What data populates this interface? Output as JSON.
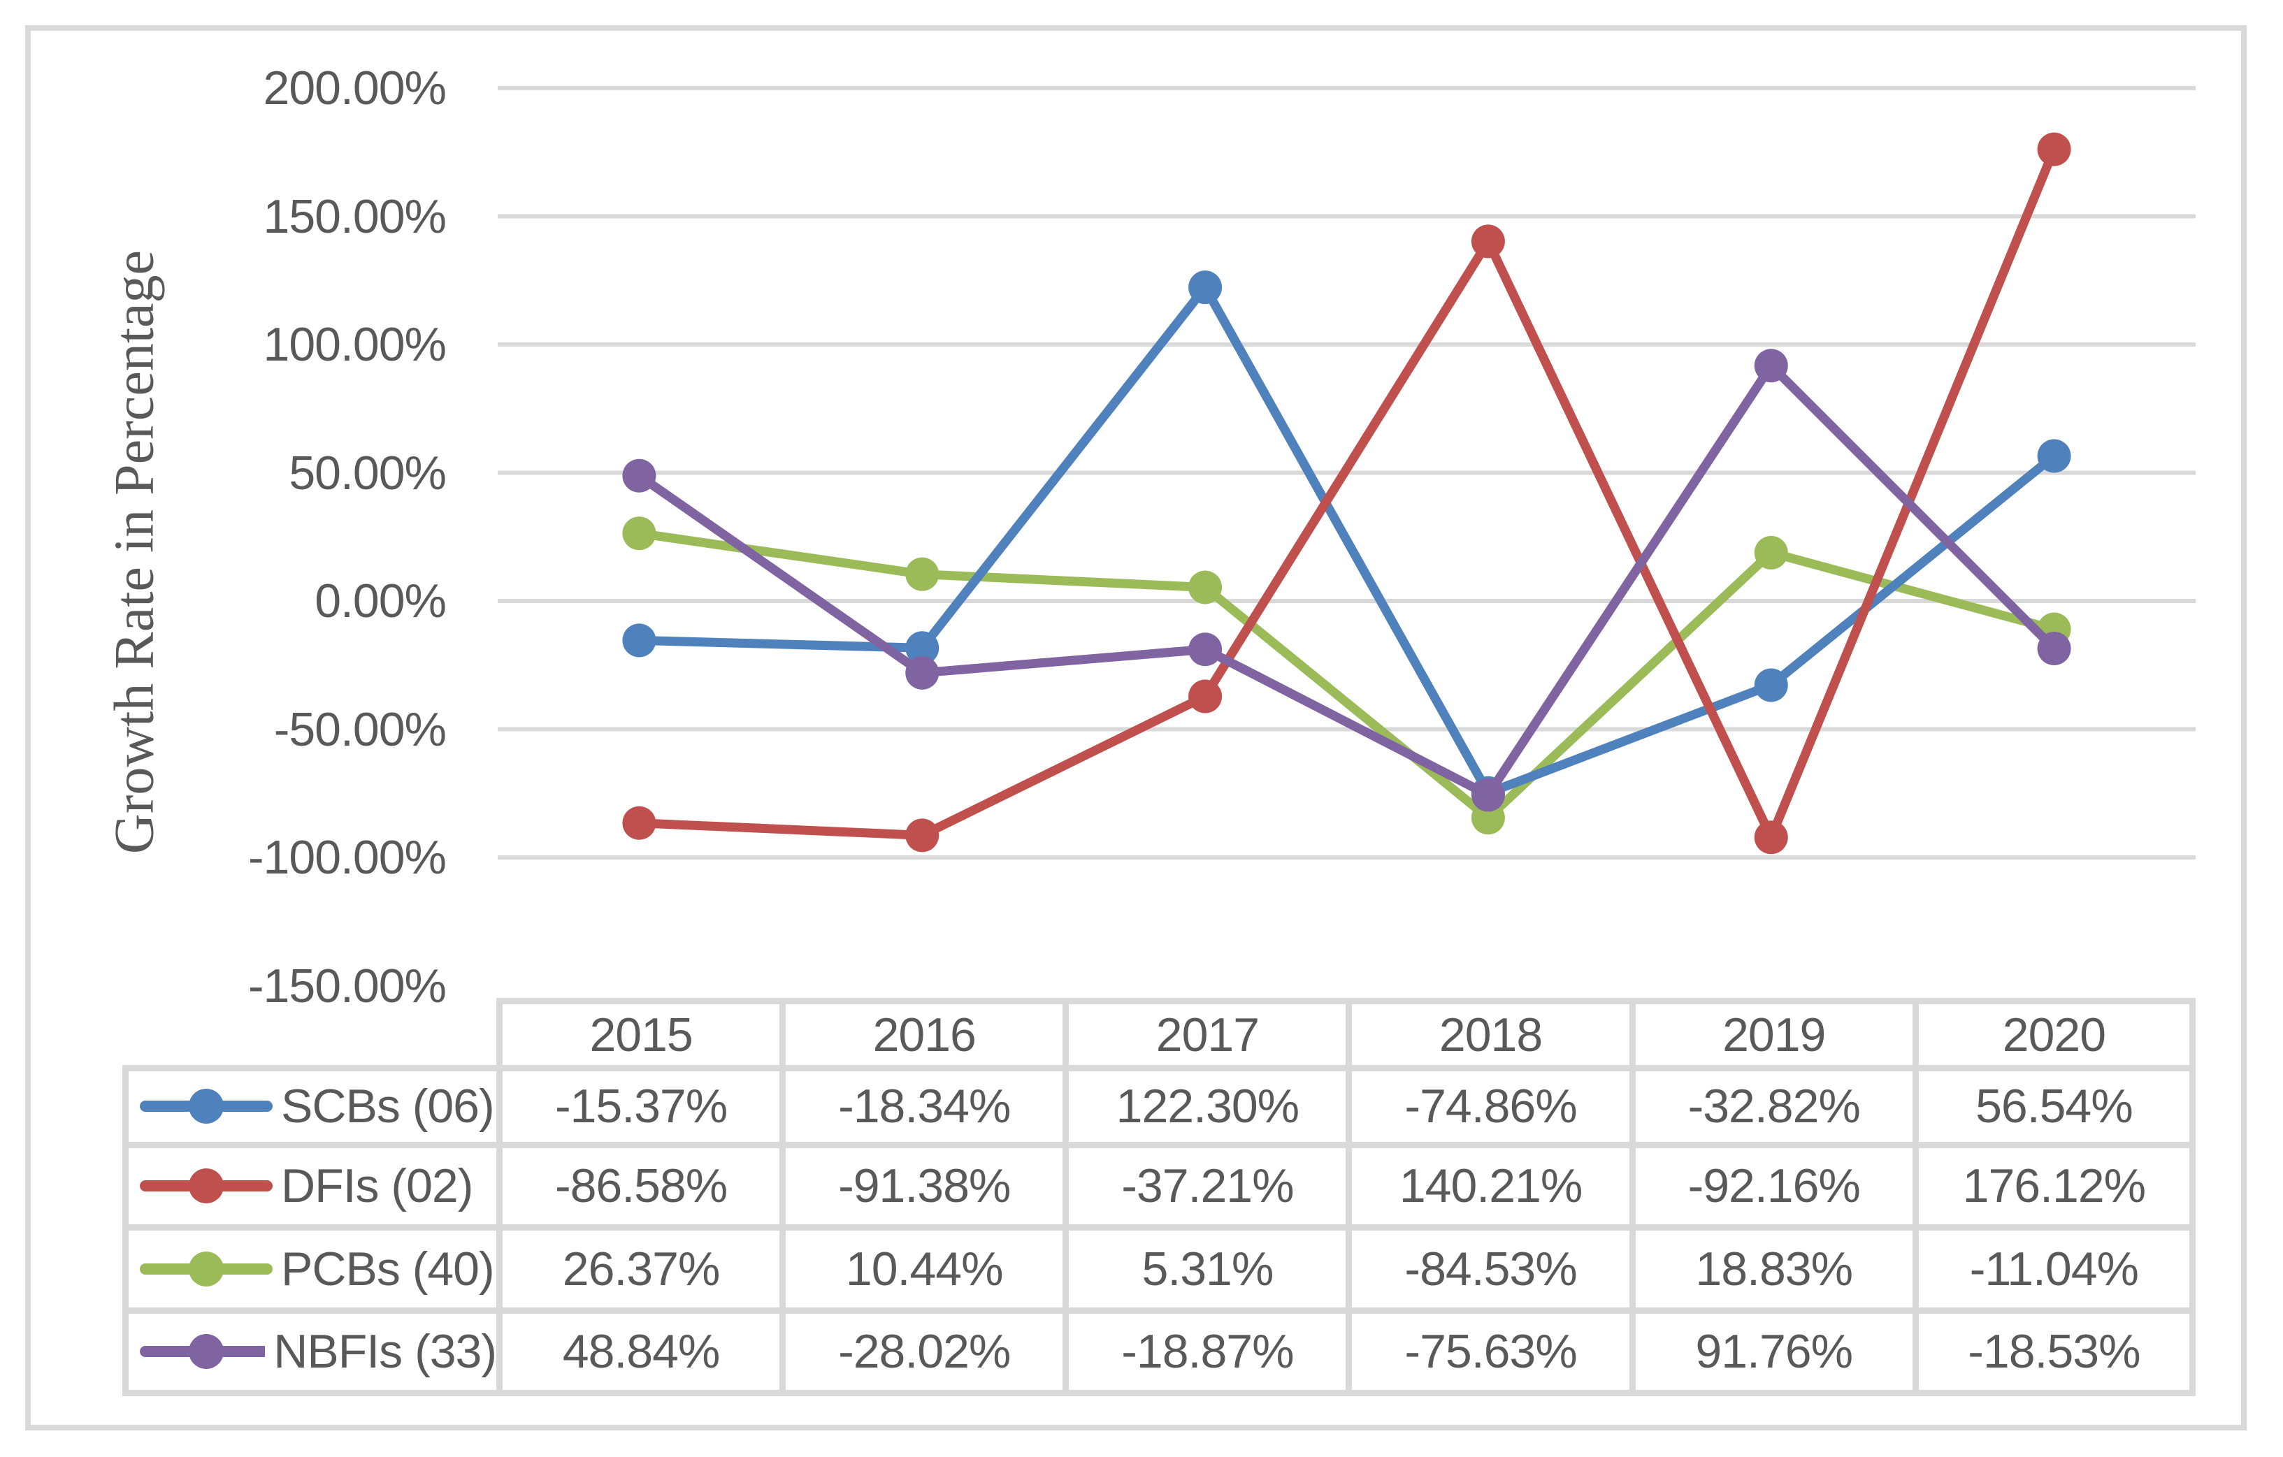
{
  "chart_data": {
    "type": "line",
    "title": "",
    "ylabel": "Growth Rate in Percentage",
    "xlabel": "",
    "x": [
      "2015",
      "2016",
      "2017",
      "2018",
      "2019",
      "2020"
    ],
    "series": [
      {
        "name": "SCBs (06)",
        "color": "#4F81BD",
        "values": [
          -15.37,
          -18.34,
          122.3,
          -74.86,
          -32.82,
          56.54
        ]
      },
      {
        "name": "DFIs (02)",
        "color": "#C0504D",
        "values": [
          -86.58,
          -91.38,
          -37.21,
          140.21,
          -92.16,
          176.12
        ]
      },
      {
        "name": "PCBs (40)",
        "color": "#9BBB59",
        "values": [
          26.37,
          10.44,
          5.31,
          -84.53,
          18.83,
          -11.04
        ]
      },
      {
        "name": "NBFIs (33)",
        "color": "#8064A2",
        "values": [
          48.84,
          -28.02,
          -18.87,
          -75.63,
          91.76,
          -18.53
        ]
      }
    ],
    "z_order": [
      2,
      0,
      1,
      3
    ],
    "marker": "circle",
    "grid": true,
    "ylim": [
      -150,
      200
    ],
    "y_ticks": [
      {
        "label": "200.00%",
        "value": 200
      },
      {
        "label": "150.00%",
        "value": 150
      },
      {
        "label": "100.00%",
        "value": 100
      },
      {
        "label": "50.00%",
        "value": 50
      },
      {
        "label": "0.00%",
        "value": 0
      },
      {
        "label": "-50.00%",
        "value": -50
      },
      {
        "label": "-100.00%",
        "value": -100
      },
      {
        "label": "-150.00%",
        "value": -150
      }
    ],
    "legend_position": "data-table-left-column"
  },
  "data_table": {
    "header": [
      "2015",
      "2016",
      "2017",
      "2018",
      "2019",
      "2020"
    ],
    "rows": [
      {
        "label": "SCBs (06)",
        "values": [
          "-15.37%",
          "-18.34%",
          "122.30%",
          "-74.86%",
          "-32.82%",
          "56.54%"
        ]
      },
      {
        "label": "DFIs (02)",
        "values": [
          "-86.58%",
          "-91.38%",
          "-37.21%",
          "140.21%",
          "-92.16%",
          "176.12%"
        ]
      },
      {
        "label": "PCBs (40)",
        "values": [
          "26.37%",
          "10.44%",
          "5.31%",
          "-84.53%",
          "18.83%",
          "-11.04%"
        ]
      },
      {
        "label": "NBFIs (33)",
        "values": [
          "48.84%",
          "-28.02%",
          "-18.87%",
          "-75.63%",
          "91.76%",
          "-18.53%"
        ]
      }
    ]
  },
  "colors": {
    "text": "#595959",
    "grid": "#D9D9D9",
    "table_border": "#D9D9D9",
    "figure_border": "#D9D9D9",
    "background": "#FFFFFF"
  }
}
